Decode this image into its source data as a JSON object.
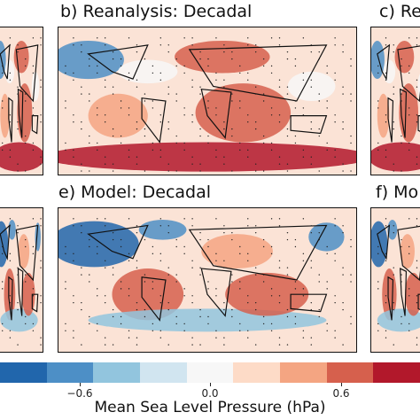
{
  "chart_data": [
    {
      "type": "heatmap",
      "panel": "a",
      "title": ""
    },
    {
      "type": "heatmap",
      "panel": "b",
      "title": "b) Reanalysis: Decadal"
    },
    {
      "type": "heatmap",
      "panel": "c",
      "title": "c) Re"
    },
    {
      "type": "heatmap",
      "panel": "d",
      "title": ""
    },
    {
      "type": "heatmap",
      "panel": "e",
      "title": "e) Model: Decadal"
    },
    {
      "type": "heatmap",
      "panel": "f",
      "title": "f) Mo"
    }
  ],
  "colorbar": {
    "label": "Mean Sea Level Pressure (hPa)",
    "ticks": [
      "−0.6",
      "0.0",
      "0.6"
    ],
    "tick_values": [
      -0.6,
      0.0,
      0.6
    ],
    "range": [
      -0.9,
      0.9
    ],
    "colors": [
      "#2166ac",
      "#4d8fc6",
      "#92c5de",
      "#d1e5f0",
      "#f7f7f7",
      "#fddbc7",
      "#f4a582",
      "#d6604d",
      "#b2182b"
    ]
  }
}
